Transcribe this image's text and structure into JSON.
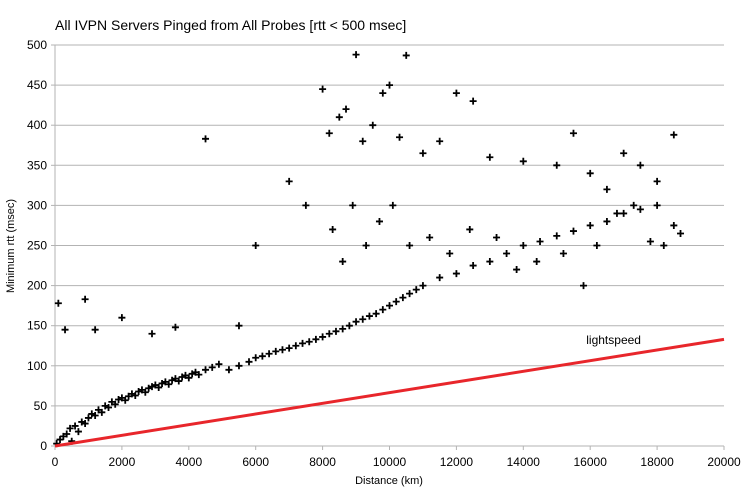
{
  "chart_data": {
    "type": "scatter",
    "title": "All IVPN Servers Pinged from All Probes [rtt < 500 msec]",
    "xlabel": "Distance (km)",
    "ylabel": "Minimum rtt (msec)",
    "xlim": [
      0,
      20000
    ],
    "ylim": [
      0,
      500
    ],
    "x_ticks": [
      0,
      2000,
      4000,
      6000,
      8000,
      10000,
      12000,
      14000,
      16000,
      18000,
      20000
    ],
    "y_ticks": [
      0,
      50,
      100,
      150,
      200,
      250,
      300,
      350,
      400,
      450,
      500
    ],
    "grid": "horizontal",
    "marker": "+",
    "marker_color": "#000000",
    "series": [
      {
        "values": [
          [
            50,
            3
          ],
          [
            150,
            8
          ],
          [
            250,
            12
          ],
          [
            350,
            15
          ],
          [
            450,
            22
          ],
          [
            500,
            6
          ],
          [
            600,
            25
          ],
          [
            700,
            18
          ],
          [
            800,
            30
          ],
          [
            900,
            28
          ],
          [
            1000,
            35
          ],
          [
            1100,
            40
          ],
          [
            1200,
            38
          ],
          [
            1300,
            45
          ],
          [
            1400,
            42
          ],
          [
            1500,
            50
          ],
          [
            1600,
            48
          ],
          [
            1700,
            55
          ],
          [
            1800,
            52
          ],
          [
            1900,
            58
          ],
          [
            2000,
            60
          ],
          [
            2100,
            57
          ],
          [
            2200,
            62
          ],
          [
            2300,
            65
          ],
          [
            2400,
            63
          ],
          [
            2500,
            68
          ],
          [
            2600,
            70
          ],
          [
            2700,
            67
          ],
          [
            2800,
            72
          ],
          [
            2900,
            74
          ],
          [
            3000,
            76
          ],
          [
            3100,
            73
          ],
          [
            3200,
            78
          ],
          [
            3300,
            80
          ],
          [
            3400,
            77
          ],
          [
            3500,
            82
          ],
          [
            3600,
            84
          ],
          [
            3700,
            81
          ],
          [
            3800,
            86
          ],
          [
            3900,
            88
          ],
          [
            4000,
            85
          ],
          [
            4100,
            90
          ],
          [
            4200,
            92
          ],
          [
            4300,
            89
          ],
          [
            4500,
            95
          ],
          [
            4700,
            98
          ],
          [
            4900,
            102
          ],
          [
            5200,
            95
          ],
          [
            5500,
            100
          ],
          [
            5800,
            105
          ],
          [
            6000,
            110
          ],
          [
            6200,
            112
          ],
          [
            6400,
            115
          ],
          [
            6600,
            118
          ],
          [
            6800,
            120
          ],
          [
            7000,
            122
          ],
          [
            7200,
            125
          ],
          [
            7400,
            128
          ],
          [
            7600,
            130
          ],
          [
            7800,
            133
          ],
          [
            8000,
            136
          ],
          [
            8200,
            140
          ],
          [
            8400,
            143
          ],
          [
            8600,
            146
          ],
          [
            8800,
            150
          ],
          [
            9000,
            155
          ],
          [
            9200,
            158
          ],
          [
            9400,
            162
          ],
          [
            9600,
            165
          ],
          [
            9800,
            170
          ],
          [
            10000,
            175
          ],
          [
            10200,
            180
          ],
          [
            10400,
            185
          ],
          [
            10600,
            190
          ],
          [
            10800,
            195
          ],
          [
            11000,
            200
          ],
          [
            11500,
            210
          ],
          [
            12000,
            215
          ],
          [
            12500,
            225
          ],
          [
            13000,
            230
          ],
          [
            13500,
            240
          ],
          [
            14000,
            250
          ],
          [
            14500,
            255
          ],
          [
            15000,
            262
          ],
          [
            15500,
            268
          ],
          [
            16000,
            275
          ],
          [
            16500,
            280
          ],
          [
            17000,
            290
          ],
          [
            17500,
            295
          ],
          [
            18000,
            300
          ],
          [
            18500,
            275
          ],
          [
            18700,
            265
          ],
          [
            100,
            178
          ],
          [
            300,
            145
          ],
          [
            900,
            183
          ],
          [
            1200,
            145
          ],
          [
            2000,
            160
          ],
          [
            2900,
            140
          ],
          [
            3600,
            148
          ],
          [
            4500,
            383
          ],
          [
            5500,
            150
          ],
          [
            6000,
            250
          ],
          [
            7000,
            330
          ],
          [
            7500,
            300
          ],
          [
            8000,
            445
          ],
          [
            8200,
            390
          ],
          [
            8500,
            410
          ],
          [
            8700,
            420
          ],
          [
            9000,
            488
          ],
          [
            9200,
            380
          ],
          [
            9500,
            400
          ],
          [
            9800,
            440
          ],
          [
            10000,
            450
          ],
          [
            10300,
            385
          ],
          [
            10500,
            487
          ],
          [
            11000,
            365
          ],
          [
            11500,
            380
          ],
          [
            12000,
            440
          ],
          [
            12500,
            430
          ],
          [
            13000,
            360
          ],
          [
            14000,
            355
          ],
          [
            15000,
            350
          ],
          [
            15500,
            390
          ],
          [
            16000,
            340
          ],
          [
            16500,
            320
          ],
          [
            17000,
            365
          ],
          [
            17500,
            350
          ],
          [
            18000,
            330
          ],
          [
            18500,
            388
          ],
          [
            8300,
            270
          ],
          [
            8600,
            230
          ],
          [
            8900,
            300
          ],
          [
            9300,
            250
          ],
          [
            9700,
            280
          ],
          [
            10100,
            300
          ],
          [
            10600,
            250
          ],
          [
            11200,
            260
          ],
          [
            11800,
            240
          ],
          [
            12400,
            270
          ],
          [
            13200,
            260
          ],
          [
            13800,
            220
          ],
          [
            14400,
            230
          ],
          [
            15200,
            240
          ],
          [
            15800,
            200
          ],
          [
            16200,
            250
          ],
          [
            16800,
            290
          ],
          [
            17300,
            300
          ],
          [
            17800,
            255
          ],
          [
            18200,
            250
          ]
        ]
      }
    ],
    "reference_line": {
      "label": "lightspeed",
      "color": "#e8262b",
      "points": [
        [
          0,
          0
        ],
        [
          20000,
          133
        ]
      ]
    }
  }
}
